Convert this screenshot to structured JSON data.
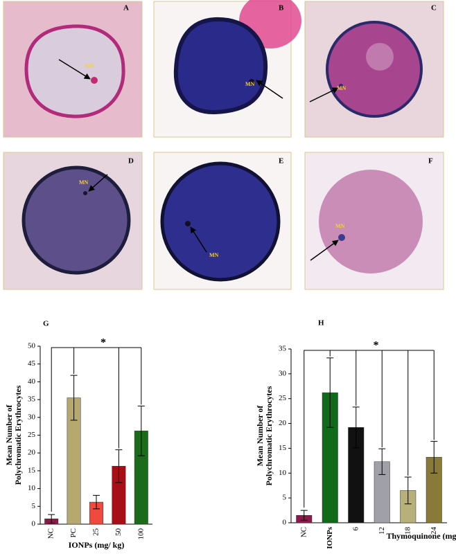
{
  "panels": [
    {
      "label": "A",
      "annotation": "MN"
    },
    {
      "label": "B",
      "annotation": "MN"
    },
    {
      "label": "C",
      "annotation": "MN"
    },
    {
      "label": "D",
      "annotation": "MN"
    },
    {
      "label": "E",
      "annotation": "MN"
    },
    {
      "label": "F",
      "annotation": "MN"
    }
  ],
  "chart_data": [
    {
      "type": "bar",
      "panel_label": "G",
      "ylabel": [
        "Mean Number of",
        "Polychromatic Erythrocytes"
      ],
      "xlabel": "IONPs (mg/ kg)",
      "categories": [
        "NC",
        "PC",
        "25",
        "50",
        "100"
      ],
      "values": [
        1.5,
        35.5,
        6.2,
        16.3,
        26.2
      ],
      "errors": [
        1.2,
        6.3,
        1.9,
        4.6,
        7.0
      ],
      "colors": [
        "#8b1a4a",
        "#b5a96e",
        "#f04a3e",
        "#a50f15",
        "#1a6b1a"
      ],
      "ylim": [
        0,
        50
      ],
      "yticks": [
        0,
        5,
        10,
        15,
        20,
        25,
        30,
        35,
        40,
        45,
        50
      ],
      "significance": "*"
    },
    {
      "type": "bar",
      "panel_label": "H",
      "ylabel": [
        "Mean Number of",
        "Polychromatic Erythrocytes"
      ],
      "xlabel": "Thymoquinone (mg/ kg)",
      "categories": [
        "NC",
        "IONPs",
        "6",
        "12",
        "18",
        "24"
      ],
      "values": [
        1.5,
        26.2,
        19.2,
        12.3,
        6.5,
        13.2
      ],
      "errors": [
        1.0,
        7.0,
        4.1,
        2.6,
        2.7,
        3.2
      ],
      "colors": [
        "#8b1a4a",
        "#0f6b1a",
        "#111111",
        "#a0a0a8",
        "#b8b07a",
        "#8a7a3a"
      ],
      "ylim": [
        0,
        35
      ],
      "yticks": [
        0,
        5,
        10,
        15,
        20,
        25,
        30,
        35
      ],
      "significance": "*"
    }
  ]
}
